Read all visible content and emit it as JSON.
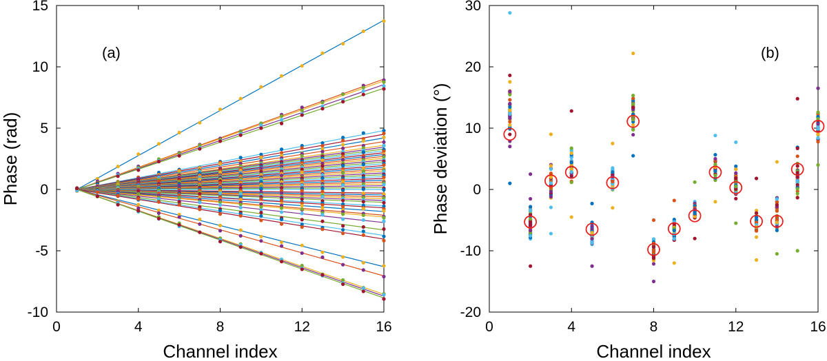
{
  "chart_data": [
    {
      "type": "line",
      "panel_label": "(a)",
      "xlabel": "Channel index",
      "ylabel": "Phase (rad)",
      "xlim": [
        0,
        16
      ],
      "ylim": [
        -10,
        15
      ],
      "xticks": [
        0,
        4,
        8,
        12,
        16
      ],
      "yticks": [
        -10,
        -5,
        0,
        5,
        10,
        15
      ],
      "x": [
        1,
        2,
        3,
        4,
        5,
        6,
        7,
        8,
        9,
        10,
        11,
        12,
        13,
        14,
        15,
        16
      ],
      "palette": [
        "#0072BD",
        "#D95319",
        "#EDB120",
        "#7E2F8E",
        "#77AC30",
        "#4DBEEE",
        "#A2142F"
      ],
      "series_slopes": [
        0.92,
        0.6,
        0.59,
        0.57,
        0.55,
        0.32,
        0.3,
        0.28,
        0.26,
        0.24,
        0.23,
        0.22,
        0.21,
        0.2,
        0.19,
        0.18,
        0.17,
        0.16,
        0.15,
        0.14,
        0.13,
        0.12,
        0.11,
        0.1,
        0.09,
        0.08,
        0.07,
        0.06,
        0.05,
        0.04,
        0.03,
        0.02,
        0.01,
        0.0,
        -0.02,
        -0.03,
        -0.04,
        -0.05,
        -0.06,
        -0.07,
        -0.09,
        -0.1,
        -0.12,
        -0.14,
        -0.15,
        -0.18,
        -0.22,
        -0.25,
        -0.27,
        -0.42,
        -0.47,
        -0.57,
        -0.58,
        -0.59
      ]
    },
    {
      "type": "scatter",
      "panel_label": "(b)",
      "xlabel": "Channel index",
      "ylabel": "Phase deviation (°)",
      "xlim": [
        0,
        16
      ],
      "ylim": [
        -20,
        30
      ],
      "xticks": [
        0,
        4,
        8,
        12,
        16
      ],
      "yticks": [
        -20,
        -10,
        0,
        10,
        20,
        30
      ],
      "channels": [
        1,
        2,
        3,
        4,
        5,
        6,
        7,
        8,
        9,
        10,
        11,
        12,
        13,
        14,
        15,
        16
      ],
      "means": [
        9.0,
        -5.3,
        1.4,
        2.8,
        -6.5,
        1.1,
        11.1,
        -9.8,
        -6.4,
        -4.3,
        2.8,
        0.3,
        -5.2,
        -5.2,
        3.3,
        10.3
      ],
      "spread_min": [
        1.0,
        -12.5,
        -7.2,
        -4.5,
        -12.5,
        -3.0,
        5.5,
        -15.0,
        -12.0,
        -8.0,
        -2.0,
        -5.5,
        -11.5,
        -10.5,
        -10.0,
        4.0
      ],
      "spread_max": [
        28.8,
        2.5,
        9.0,
        12.8,
        -2.3,
        7.5,
        22.2,
        -5.0,
        -1.8,
        1.2,
        8.8,
        7.7,
        1.8,
        4.5,
        14.8,
        16.5
      ],
      "mean_marker_color": "#E8201E"
    }
  ]
}
